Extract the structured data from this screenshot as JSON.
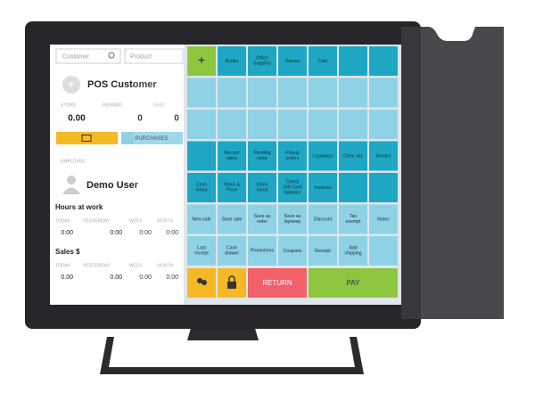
{
  "search": {
    "customer": "Customer",
    "product": "Product"
  },
  "customer": {
    "name": "POS Customer",
    "stats": [
      {
        "label": "STORE",
        "value": "0.00"
      },
      {
        "label": "REWARD",
        "value": "0"
      },
      {
        "label": "DEBT",
        "value": "0"
      }
    ],
    "purchases": "PURCHASES"
  },
  "employee": {
    "heading": "EMPLOYEE",
    "name": "Demo User"
  },
  "hours": {
    "title": "Hours at work",
    "periods": [
      {
        "label": "TODAY",
        "value": "0:00"
      },
      {
        "label": "YESTERDAY",
        "value": "0:00"
      },
      {
        "label": "WEEK",
        "value": "0:00"
      },
      {
        "label": "MONTH",
        "value": "0:00"
      }
    ]
  },
  "sales": {
    "title": "Sales $",
    "periods": [
      {
        "label": "TODAY",
        "value": "0.00"
      },
      {
        "label": "YESTERDAY",
        "value": "0.00"
      },
      {
        "label": "WEEK",
        "value": "0.00"
      },
      {
        "label": "MONTH",
        "value": "0.00"
      }
    ]
  },
  "grid": {
    "rows": [
      {
        "color": "#1ea7c5",
        "cells": [
          "+",
          "Books",
          "Office Supplies",
          "Games",
          "Cafe",
          null,
          null
        ]
      },
      {
        "color": "#8fd2e6",
        "cells": [
          null,
          null,
          null,
          null,
          null,
          null,
          null
        ]
      },
      {
        "color": "#8fd2e6",
        "cells": [
          null,
          null,
          null,
          null,
          null,
          null,
          null
        ]
      },
      {
        "color": "#1ea7c5",
        "cells": [
          null,
          "Record sales",
          "Pending sales",
          "Pickup orders",
          "Layaways",
          "Clear sky",
          "Invoice"
        ]
      },
      {
        "color": "#1ea7c5",
        "cells": [
          "Cash in/out",
          "Stock & Price",
          "Clock in/out",
          "Check Gift Card balance",
          "Invoices",
          null,
          null
        ]
      },
      {
        "color": "#8fd2e6",
        "cells": [
          "New sale",
          "Save sale",
          "Save as order",
          "Save as layaway",
          "Discount",
          "Tax exempt",
          "Notes"
        ]
      },
      {
        "color": "#8fd2e6",
        "cells": [
          "Last receipt",
          "Cash drawer",
          "Promotions",
          "Coupons",
          "Receipt",
          "Add shipping",
          null
        ]
      }
    ]
  },
  "actions": {
    "return": "RETURN",
    "pay": "PAY"
  }
}
